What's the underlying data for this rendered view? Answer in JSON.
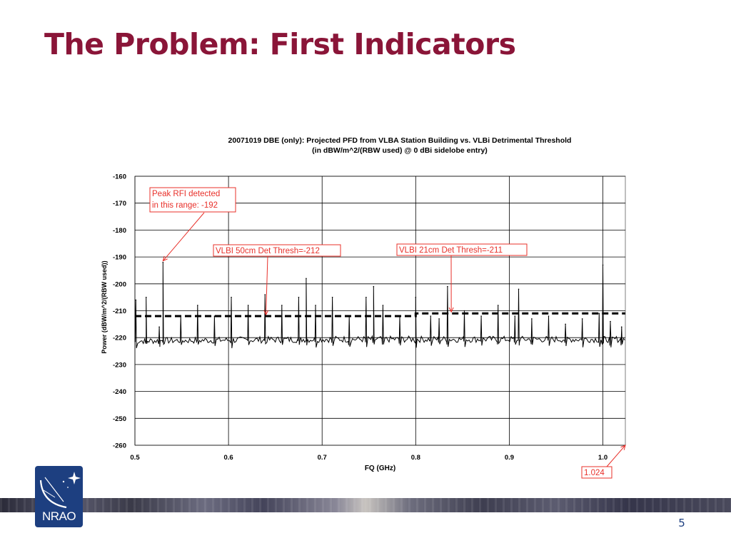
{
  "slide": {
    "title": "The Problem:  First Indicators",
    "page_number": "5",
    "logo_text": "NRAO"
  },
  "colors": {
    "title": "#8a1538",
    "annotation": "#e8302a",
    "logo_bg": "#1d3f80"
  },
  "chart_data": {
    "type": "line",
    "title": "20071019 DBE (only): Projected PFD from VLBA Station Building vs. VLBi Detrimental Threshold",
    "subtitle": "(in dBW/m^2/(RBW used) @ 0 dBi sidelobe entry)",
    "xlabel": "FQ (GHz)",
    "ylabel": "Power (dBW/m^2/(RBW used))",
    "xlim": [
      0.5,
      1.024
    ],
    "ylim": [
      -260,
      -160
    ],
    "x_ticks": [
      "0.5",
      "0.6",
      "0.7",
      "0.8",
      "0.9",
      "1.0"
    ],
    "y_ticks": [
      "-160",
      "-170",
      "-180",
      "-190",
      "-200",
      "-210",
      "-220",
      "-230",
      "-240",
      "-250",
      "-260"
    ],
    "grid": true,
    "legend": "none",
    "series": [
      {
        "baseline_approx": -220,
        "peaks": [
          {
            "x": 0.501,
            "y": -206
          },
          {
            "x": 0.512,
            "y": -205
          },
          {
            "x": 0.526,
            "y": -216
          },
          {
            "x": 0.53,
            "y": -192
          },
          {
            "x": 0.549,
            "y": -212
          },
          {
            "x": 0.567,
            "y": -208
          },
          {
            "x": 0.585,
            "y": -212
          },
          {
            "x": 0.603,
            "y": -205
          },
          {
            "x": 0.621,
            "y": -208
          },
          {
            "x": 0.639,
            "y": -204
          },
          {
            "x": 0.657,
            "y": -208
          },
          {
            "x": 0.675,
            "y": -205
          },
          {
            "x": 0.683,
            "y": -198
          },
          {
            "x": 0.693,
            "y": -208
          },
          {
            "x": 0.711,
            "y": -205
          },
          {
            "x": 0.729,
            "y": -212
          },
          {
            "x": 0.747,
            "y": -205
          },
          {
            "x": 0.755,
            "y": -201
          },
          {
            "x": 0.765,
            "y": -208
          },
          {
            "x": 0.783,
            "y": -212
          },
          {
            "x": 0.8,
            "y": -205
          },
          {
            "x": 0.816,
            "y": -212
          },
          {
            "x": 0.825,
            "y": -213
          },
          {
            "x": 0.834,
            "y": -201
          },
          {
            "x": 0.852,
            "y": -210
          },
          {
            "x": 0.87,
            "y": -212
          },
          {
            "x": 0.888,
            "y": -208
          },
          {
            "x": 0.906,
            "y": -212
          },
          {
            "x": 0.91,
            "y": -202
          },
          {
            "x": 0.924,
            "y": -213
          },
          {
            "x": 0.942,
            "y": -212
          },
          {
            "x": 0.96,
            "y": -215
          },
          {
            "x": 0.978,
            "y": -213
          },
          {
            "x": 0.996,
            "y": -211
          },
          {
            "x": 1.0,
            "y": -193
          },
          {
            "x": 1.008,
            "y": -214
          },
          {
            "x": 1.02,
            "y": -216
          }
        ]
      },
      {
        "style": "dashed",
        "points": [
          {
            "x": 0.5,
            "y": -212
          },
          {
            "x": 0.8,
            "y": -212
          },
          {
            "x": 0.8,
            "y": -211
          },
          {
            "x": 1.024,
            "y": -211
          }
        ]
      }
    ],
    "annotations": [
      {
        "lines": [
          "Peak RFI detected",
          "in this range: -192"
        ],
        "arrow_to": {
          "x": 0.53,
          "y": -192
        }
      },
      {
        "lines": [
          "VLBI 50cm Det Thresh=-212"
        ],
        "arrow_to": {
          "x": 0.64,
          "y": -212
        }
      },
      {
        "lines": [
          "VLBI 21cm Det Thresh=-211"
        ],
        "arrow_to": {
          "x": 0.838,
          "y": -211
        }
      },
      {
        "lines": [
          "1.024"
        ],
        "arrow_to": {
          "x": 1.024,
          "y": -260
        }
      }
    ]
  }
}
